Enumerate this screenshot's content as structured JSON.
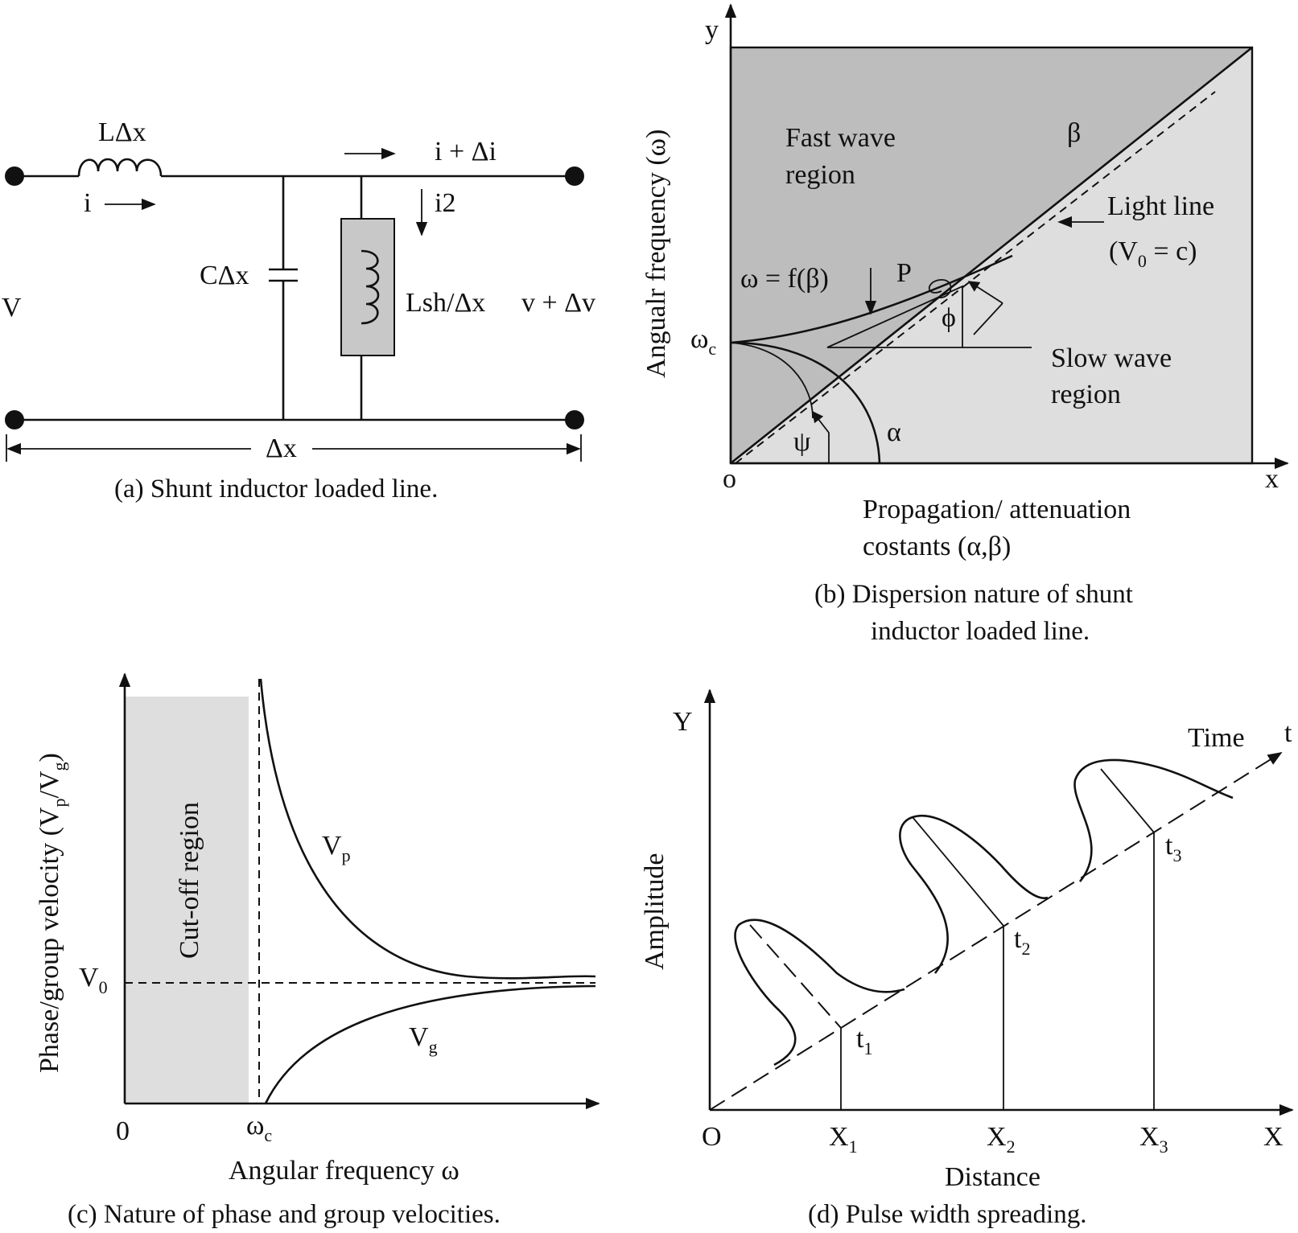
{
  "panel_a": {
    "caption": "(a) Shunt inductor loaded line.",
    "series_inductor": "LΔx",
    "current_in": "i",
    "current_out": "i + Δi",
    "shunt_current": "i2",
    "capacitor": "CΔx",
    "shunt_inductor": "Lsh/Δx",
    "voltage_in": "V",
    "voltage_out": "v + Δv",
    "length": "Δx"
  },
  "panel_b": {
    "caption_line1": "(b) Dispersion nature of shunt",
    "caption_line2": "inductor loaded line.",
    "y_axis_letter": "y",
    "x_axis_letter": "x",
    "origin": "o",
    "y_label": "Angualr frequency (ω)",
    "x_label_line1": "Propagation/ attenuation",
    "x_label_line2": "costants (α,β)",
    "fast_region_line1": "Fast wave",
    "fast_region_line2": "region",
    "slow_region_line1": "Slow wave",
    "slow_region_line2": "region",
    "light_line_label": "Light line",
    "light_line_eq_pre": "(V",
    "light_line_eq_sub": "0",
    "light_line_eq_post": " = c)",
    "beta": "β",
    "alpha": "α",
    "curve_label": "ω = f(β)",
    "point": "P",
    "phi": "ϕ",
    "psi": "ψ",
    "omega_c": "ω",
    "omega_c_sub": "c",
    "fast_color": "#bdbdbd",
    "slow_color": "#dedede"
  },
  "panel_c": {
    "caption": "(c) Nature of phase and group velocities.",
    "y_label_pre": "Phase/group velocity (V",
    "y_label_sub1": "p",
    "y_label_mid": "/V",
    "y_label_sub2": "g",
    "y_label_post": ")",
    "x_label": "Angular frequency ω",
    "cutoff_label": "Cut-off region",
    "v0": "V",
    "v0_sub": "0",
    "zero": "0",
    "omega_c": "ω",
    "omega_c_sub": "c",
    "vp": "V",
    "vp_sub": "p",
    "vg": "V",
    "vg_sub": "g",
    "cutoff_color": "#dedede"
  },
  "panel_d": {
    "caption": "(d) Pulse width spreading.",
    "y_axis_letter": "Y",
    "x_axis_letter": "X",
    "origin": "O",
    "y_label": "Amplitude",
    "x_label": "Distance",
    "time_label": "Time",
    "t_axis": "t",
    "t1": "t",
    "t1_sub": "1",
    "t2": "t",
    "t2_sub": "2",
    "t3": "t",
    "t3_sub": "3",
    "x1": "X",
    "x1_sub": "1",
    "x2": "X",
    "x2_sub": "2",
    "x3": "X",
    "x3_sub": "3"
  }
}
